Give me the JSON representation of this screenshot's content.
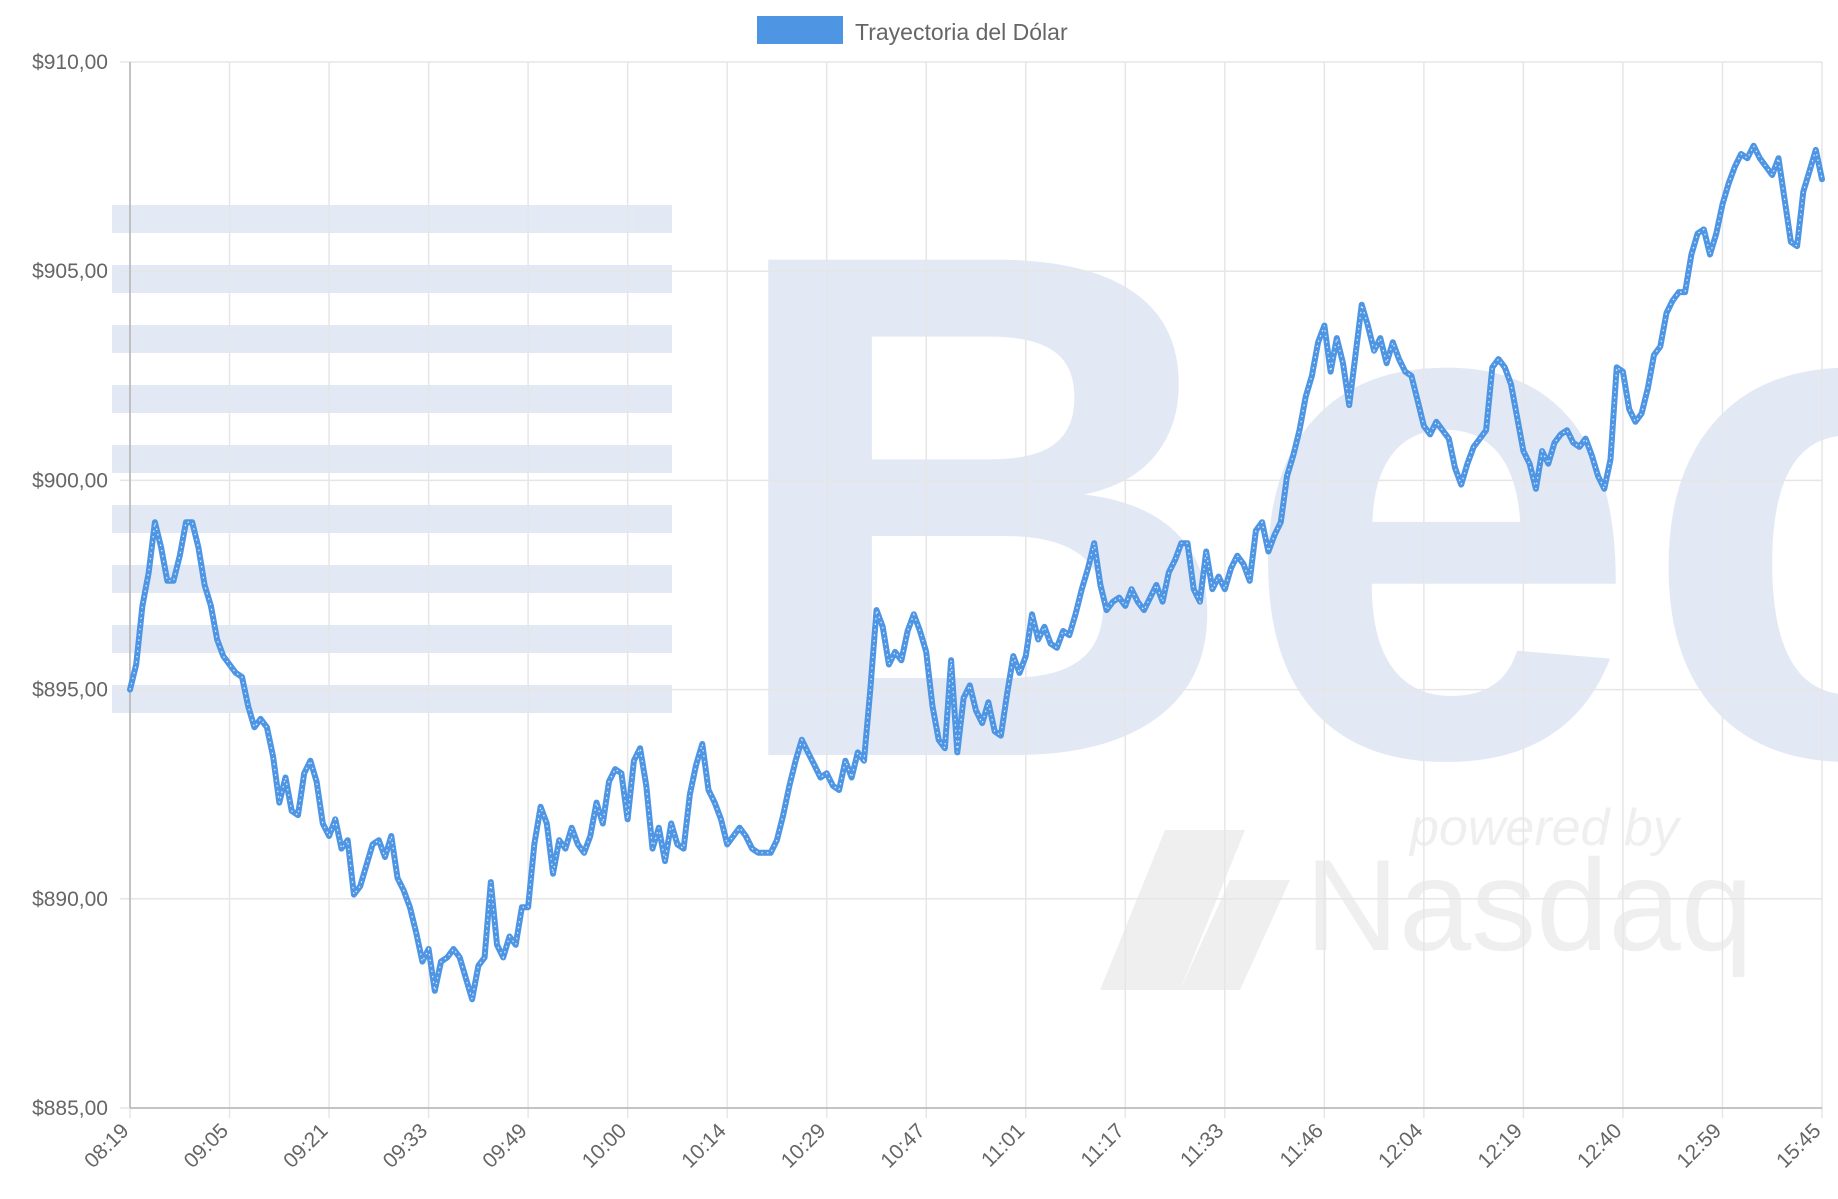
{
  "chart_data": {
    "type": "line",
    "title": "",
    "xlabel": "",
    "ylabel": "",
    "x_tick_labels": [
      "08:19",
      "09:05",
      "09:21",
      "09:33",
      "09:49",
      "10:00",
      "10:14",
      "10:29",
      "10:47",
      "11:01",
      "11:17",
      "11:33",
      "11:46",
      "12:04",
      "12:19",
      "12:40",
      "12:59",
      "15:45"
    ],
    "y_tick_labels": [
      "$910,00",
      "$905,00",
      "$900,00",
      "$895,00",
      "$890,00",
      "$885,00"
    ],
    "ylim": [
      885,
      910
    ],
    "grid": true,
    "legend": {
      "position": "top-center",
      "label": "Trayectoria del Dólar",
      "color": "#4e95e4"
    },
    "series": [
      {
        "name": "Trayectoria del Dólar",
        "color": "#4e95e4",
        "values": [
          895.0,
          895.6,
          897.0,
          897.8,
          899.0,
          898.4,
          897.6,
          897.6,
          898.2,
          899.0,
          899.0,
          898.4,
          897.5,
          897.0,
          896.2,
          895.8,
          895.6,
          895.4,
          895.3,
          894.6,
          894.1,
          894.3,
          894.1,
          893.4,
          892.3,
          892.9,
          892.1,
          892.0,
          893.0,
          893.3,
          892.8,
          891.8,
          891.5,
          891.9,
          891.2,
          891.4,
          890.1,
          890.3,
          890.8,
          891.3,
          891.4,
          891.0,
          891.5,
          890.5,
          890.2,
          889.8,
          889.2,
          888.5,
          888.8,
          887.8,
          888.5,
          888.6,
          888.8,
          888.6,
          888.1,
          887.6,
          888.4,
          888.6,
          890.4,
          888.9,
          888.6,
          889.1,
          888.9,
          889.8,
          889.8,
          891.3,
          892.2,
          891.8,
          890.6,
          891.4,
          891.2,
          891.7,
          891.3,
          891.1,
          891.5,
          892.3,
          891.8,
          892.8,
          893.1,
          893.0,
          891.9,
          893.3,
          893.6,
          892.7,
          891.2,
          891.7,
          890.9,
          891.8,
          891.3,
          891.2,
          892.5,
          893.2,
          893.7,
          892.6,
          892.3,
          891.9,
          891.3,
          891.5,
          891.7,
          891.5,
          891.2,
          891.1,
          891.1,
          891.1,
          891.4,
          892.0,
          892.7,
          893.3,
          893.8,
          893.5,
          893.2,
          892.9,
          893.0,
          892.7,
          892.6,
          893.3,
          892.9,
          893.5,
          893.3,
          895.0,
          896.9,
          896.5,
          895.6,
          895.9,
          895.7,
          896.4,
          896.8,
          896.4,
          895.9,
          894.6,
          893.8,
          893.6,
          895.7,
          893.5,
          894.8,
          895.1,
          894.5,
          894.2,
          894.7,
          894.0,
          893.9,
          894.9,
          895.8,
          895.4,
          895.8,
          896.8,
          896.2,
          896.5,
          896.1,
          896.0,
          896.4,
          896.3,
          896.8,
          897.4,
          897.9,
          898.5,
          897.5,
          896.9,
          897.1,
          897.2,
          897.0,
          897.4,
          897.1,
          896.9,
          897.2,
          897.5,
          897.1,
          897.8,
          898.1,
          898.5,
          898.5,
          897.4,
          897.1,
          898.3,
          897.4,
          897.7,
          897.4,
          897.9,
          898.2,
          898.0,
          897.6,
          898.8,
          899.0,
          898.3,
          898.7,
          899.0,
          900.1,
          900.6,
          901.2,
          902.0,
          902.5,
          903.3,
          903.7,
          902.6,
          903.4,
          902.8,
          901.8,
          903.0,
          904.2,
          903.7,
          903.1,
          903.4,
          902.8,
          903.3,
          902.9,
          902.6,
          902.5,
          901.9,
          901.3,
          901.1,
          901.4,
          901.2,
          901.0,
          900.3,
          899.9,
          900.4,
          900.8,
          901.0,
          901.2,
          902.7,
          902.9,
          902.7,
          902.3,
          901.5,
          900.7,
          900.4,
          899.8,
          900.7,
          900.4,
          900.9,
          901.1,
          901.2,
          900.9,
          900.8,
          901.0,
          900.6,
          900.1,
          899.8,
          900.5,
          902.7,
          902.6,
          901.7,
          901.4,
          901.6,
          902.2,
          903.0,
          903.2,
          904.0,
          904.3,
          904.5,
          904.5,
          905.4,
          905.9,
          906.0,
          905.4,
          905.9,
          906.6,
          907.1,
          907.5,
          907.8,
          907.7,
          908.0,
          907.7,
          907.5,
          907.3,
          907.7,
          906.7,
          905.7,
          905.6,
          906.9,
          907.4,
          907.9,
          907.2
        ]
      }
    ]
  }
}
